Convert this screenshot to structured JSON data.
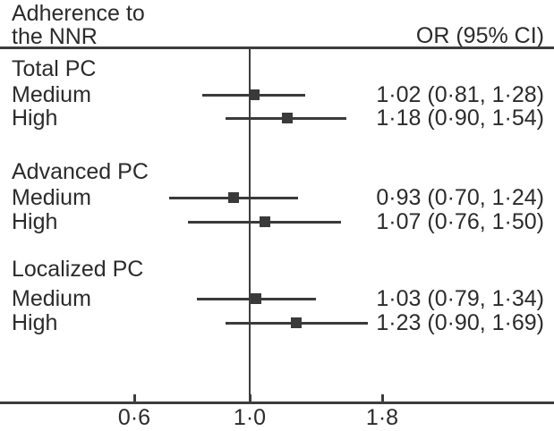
{
  "header": {
    "title_line1": "Adherence to",
    "title_line2": "the NNR",
    "or_header": "OR (95% CI)"
  },
  "colors": {
    "line": "#3d3d3d",
    "marker": "#3a3a3a",
    "text": "#2b2b2b",
    "background": "#ffffff"
  },
  "chart_data": {
    "type": "forest",
    "x_scale": "log",
    "xlim": [
      0.33,
      3.86
    ],
    "ref_line": 1.0,
    "x_ticks": [
      0.6,
      1.0,
      1.8
    ],
    "x_tick_labels": [
      "0·6",
      "1·0",
      "1·8"
    ],
    "value_column_header": "OR (95% CI)",
    "groups": [
      {
        "label": "Total PC",
        "rows": [
          {
            "label": "Medium",
            "or": 1.02,
            "lo": 0.81,
            "hi": 1.28,
            "text": "1·02 (0·81, 1·28)"
          },
          {
            "label": "High",
            "or": 1.18,
            "lo": 0.9,
            "hi": 1.54,
            "text": "1·18 (0·90, 1·54)"
          }
        ]
      },
      {
        "label": "Advanced PC",
        "rows": [
          {
            "label": "Medium",
            "or": 0.93,
            "lo": 0.7,
            "hi": 1.24,
            "text": "0·93 (0·70, 1·24)"
          },
          {
            "label": "High",
            "or": 1.07,
            "lo": 0.76,
            "hi": 1.5,
            "text": "1·07 (0·76, 1·50)"
          }
        ]
      },
      {
        "label": "Localized PC",
        "rows": [
          {
            "label": "Medium",
            "or": 1.03,
            "lo": 0.79,
            "hi": 1.34,
            "text": "1·03 (0·79, 1·34)"
          },
          {
            "label": "High",
            "or": 1.23,
            "lo": 0.9,
            "hi": 1.69,
            "text": "1·23 (0·90, 1·69)"
          }
        ]
      }
    ]
  }
}
